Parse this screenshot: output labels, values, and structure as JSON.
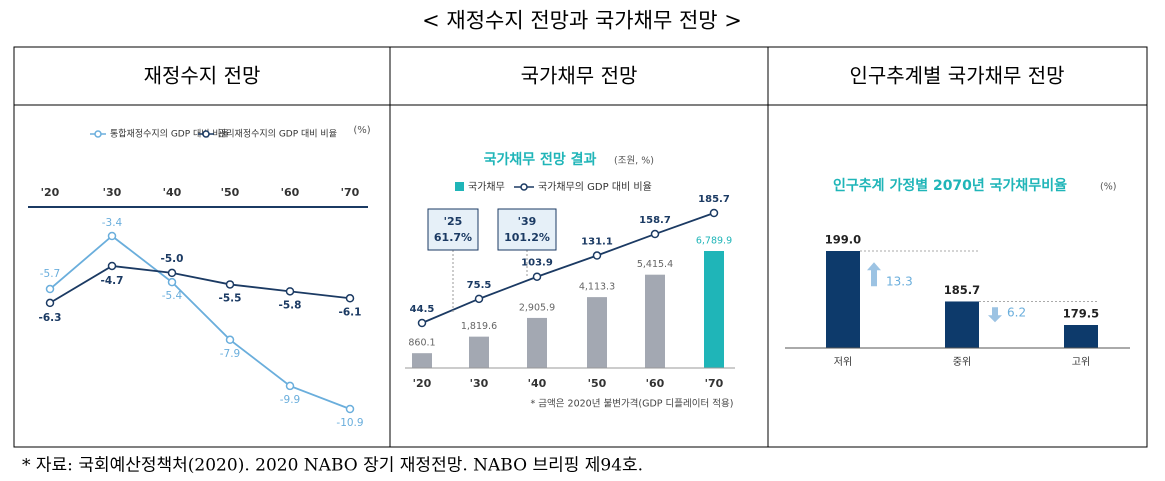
{
  "title": "< 재정수지 전망과 국가채무 전망 >",
  "columns": [
    "재정수지 전망",
    "국가채무 전망",
    "인구추계별 국가채무 전망"
  ],
  "note": "* 자료: 국회예산정책처(2020). 2020 NABO 장기 재정전망. NABO 브리핑 제94호.",
  "chart_data": [
    {
      "type": "line",
      "unit": "(%)",
      "categories": [
        "'20",
        "'30",
        "'40",
        "'50",
        "'60",
        "'70"
      ],
      "series": [
        {
          "name": "통합재정수지의 GDP 대비 비율",
          "color": "#6aaedc",
          "values": [
            -5.7,
            -3.4,
            -5.4,
            -7.9,
            -9.9,
            -10.9
          ]
        },
        {
          "name": "관리재정수지의 GDP 대비 비율",
          "color": "#1b3a63",
          "values": [
            -6.3,
            -4.7,
            -5.0,
            -5.5,
            -5.8,
            -6.1
          ],
          "value_labels": [
            "-6.3",
            "-4.7",
            "-5.0",
            "-5.5",
            "-5.8",
            "-6.1"
          ]
        }
      ]
    },
    {
      "type": "combo",
      "title": "국가채무 전망 결과",
      "subtitle": "(조원, %)",
      "categories": [
        "'20",
        "'30",
        "'40",
        "'50",
        "'60",
        "'70"
      ],
      "series": [
        {
          "name": "국가채무",
          "colors": [
            "#a3a8b2",
            "#a3a8b2",
            "#a3a8b2",
            "#a3a8b2",
            "#a3a8b2",
            "#1fb5b8"
          ],
          "values": [
            860.1,
            1819.6,
            2905.9,
            4113.3,
            5415.4,
            6789.9
          ],
          "value_labels": [
            "860.1",
            "1,819.6",
            "2,905.9",
            "4,113.3",
            "5,415.4",
            "6,789.9"
          ]
        },
        {
          "name": "국가채무의 GDP 대비 비율",
          "color": "#1b3a63",
          "axis": "y2",
          "values": [
            44.5,
            75.5,
            103.9,
            131.1,
            158.7,
            185.7
          ]
        }
      ],
      "annotations": [
        {
          "year": "'25",
          "text": "61.7%"
        },
        {
          "year": "'39",
          "text": "101.2%"
        }
      ],
      "note": "* 금액은 2020년 불변가격(GDP 디플레이터 적용)"
    },
    {
      "type": "bar",
      "title": "인구추계 가정별 2070년 국가채무비율",
      "unit": "(%)",
      "color": "#0d3a6b",
      "categories": [
        "저위",
        "중위",
        "고위"
      ],
      "values": [
        199.0,
        185.7,
        179.5
      ],
      "value_labels": [
        "199.0",
        "185.7",
        "179.5"
      ],
      "differences": [
        13.3,
        6.2
      ]
    }
  ]
}
